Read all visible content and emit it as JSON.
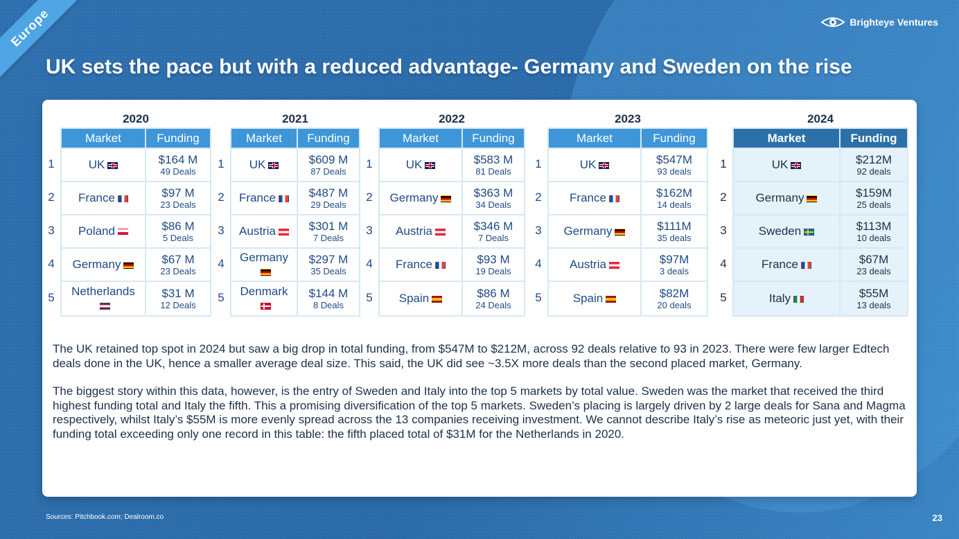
{
  "ribbon": "Europe",
  "brand": {
    "name": "Brighteye Ventures",
    "icon": "eye-icon"
  },
  "title": "UK sets the pace but with a reduced advantage- Germany and Sweden on the rise",
  "headers": {
    "market": "Market",
    "funding": "Funding"
  },
  "tables": [
    {
      "year": "2020",
      "rows": [
        {
          "rank": "1",
          "market": "UK",
          "flag": "uk",
          "amount": "$164 M",
          "deals": "49 Deals"
        },
        {
          "rank": "2",
          "market": "France",
          "flag": "fr",
          "amount": "$97 M",
          "deals": "23 Deals"
        },
        {
          "rank": "3",
          "market": "Poland",
          "flag": "pl",
          "amount": "$86 M",
          "deals": "5 Deals"
        },
        {
          "rank": "4",
          "market": "Germany",
          "flag": "de",
          "amount": "$67 M",
          "deals": "23 Deals"
        },
        {
          "rank": "5",
          "market": "Netherlands",
          "flag": "nl",
          "amount": "$31 M",
          "deals": "12 Deals"
        }
      ]
    },
    {
      "year": "2021",
      "rows": [
        {
          "rank": "1",
          "market": "UK",
          "flag": "uk",
          "amount": "$609 M",
          "deals": "87 Deals"
        },
        {
          "rank": "2",
          "market": "France",
          "flag": "fr",
          "amount": "$487 M",
          "deals": "29 Deals"
        },
        {
          "rank": "3",
          "market": "Austria",
          "flag": "at",
          "amount": "$301 M",
          "deals": "7 Deals"
        },
        {
          "rank": "4",
          "market": "Germany",
          "flag": "de",
          "amount": "$297 M",
          "deals": "35 Deals"
        },
        {
          "rank": "5",
          "market": "Denmark",
          "flag": "dk",
          "amount": "$144 M",
          "deals": "8 Deals"
        }
      ]
    },
    {
      "year": "2022",
      "rows": [
        {
          "rank": "1",
          "market": "UK",
          "flag": "uk",
          "amount": "$583 M",
          "deals": "81 Deals"
        },
        {
          "rank": "2",
          "market": "Germany",
          "flag": "de",
          "amount": "$363 M",
          "deals": "34 Deals"
        },
        {
          "rank": "3",
          "market": "Austria",
          "flag": "at",
          "amount": "$346 M",
          "deals": "7 Deals"
        },
        {
          "rank": "4",
          "market": "France",
          "flag": "fr",
          "amount": "$93 M",
          "deals": "19 Deals"
        },
        {
          "rank": "5",
          "market": "Spain",
          "flag": "es",
          "amount": "$86 M",
          "deals": "24 Deals"
        }
      ]
    },
    {
      "year": "2023",
      "rows": [
        {
          "rank": "1",
          "market": "UK",
          "flag": "uk",
          "amount": "$547M",
          "deals": "93 deals"
        },
        {
          "rank": "2",
          "market": "France",
          "flag": "fr",
          "amount": "$162M",
          "deals": "14 deals"
        },
        {
          "rank": "3",
          "market": "Germany",
          "flag": "de",
          "amount": "$111M",
          "deals": "35 deals"
        },
        {
          "rank": "4",
          "market": "Austria",
          "flag": "at",
          "amount": "$97M",
          "deals": "3 deals"
        },
        {
          "rank": "5",
          "market": "Spain",
          "flag": "es",
          "amount": "$82M",
          "deals": "20 deals"
        }
      ]
    },
    {
      "year": "2024",
      "rows": [
        {
          "rank": "1",
          "market": "UK",
          "flag": "uk",
          "amount": "$212M",
          "deals": "92 deals"
        },
        {
          "rank": "2",
          "market": "Germany",
          "flag": "de",
          "amount": "$159M",
          "deals": "25 deals"
        },
        {
          "rank": "3",
          "market": "Sweden",
          "flag": "se",
          "amount": "$113M",
          "deals": "10 deals"
        },
        {
          "rank": "4",
          "market": "France",
          "flag": "fr",
          "amount": "$67M",
          "deals": "23 deals"
        },
        {
          "rank": "5",
          "market": "Italy",
          "flag": "it",
          "amount": "$55M",
          "deals": "13 deals"
        }
      ]
    }
  ],
  "body": [
    "The UK retained top spot in 2024 but saw a big drop in total funding, from $547M to $212M, across 92 deals relative to 93 in 2023. There were few larger Edtech deals done in the UK, hence a smaller average deal size. This said, the UK did see ~3.5X more deals than the second placed market, Germany.",
    "The biggest story within this data, however, is the entry of Sweden and Italy into the top 5 markets by total value. Sweden was the market that received the third highest funding total and Italy the fifth. This a promising diversification of the top 5 markets. Sweden’s placing is largely driven by 2 large deals for Sana and Magma respectively, whilst Italy’s $55M is more evenly spread across the 13 companies receiving investment. We cannot describe Italy’s rise as meteoric just yet, with their funding total exceeding only one record in this table: the fifth placed total of $31M for the Netherlands in 2020."
  ],
  "footer": {
    "sources": "Sources: Pitchbook.com; Dealroom.co",
    "page": "23"
  }
}
